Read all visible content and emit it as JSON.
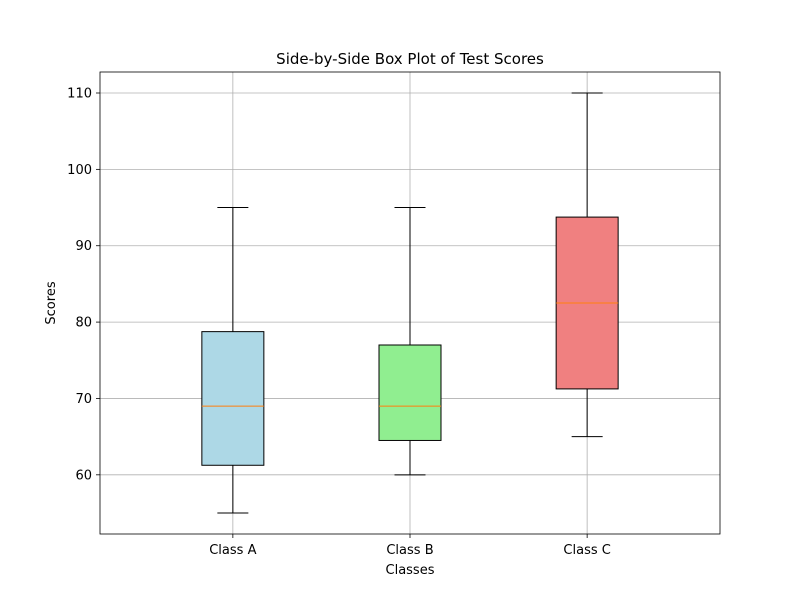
{
  "chart_data": {
    "type": "box",
    "title": "Side-by-Side Box Plot of Test Scores",
    "xlabel": "Classes",
    "ylabel": "Scores",
    "ylim": [
      52.25,
      112.75
    ],
    "yticks": [
      60,
      70,
      80,
      90,
      100,
      110
    ],
    "grid": true,
    "median_color": "#ff7f0e",
    "categories": [
      "Class A",
      "Class B",
      "Class C"
    ],
    "series": [
      {
        "category": "Class A",
        "whisker_low": 55,
        "q1": 61.25,
        "median": 69,
        "q3": 78.75,
        "whisker_high": 95,
        "color": "#add8e6"
      },
      {
        "category": "Class B",
        "whisker_low": 60,
        "q1": 64.5,
        "median": 69,
        "q3": 77,
        "whisker_high": 95,
        "color": "#90ee90"
      },
      {
        "category": "Class C",
        "whisker_low": 65,
        "q1": 71.25,
        "median": 82.5,
        "q3": 93.75,
        "whisker_high": 110,
        "color": "#f08080"
      }
    ]
  }
}
